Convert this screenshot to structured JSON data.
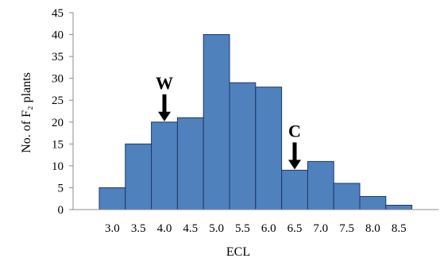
{
  "chart_data": {
    "type": "bar",
    "categories": [
      "3.0",
      "3.5",
      "4.0",
      "4.5",
      "5.0",
      "5.5",
      "6.0",
      "6.5",
      "7.0",
      "7.5",
      "8.0",
      "8.5"
    ],
    "values": [
      5,
      15,
      20,
      21,
      40,
      29,
      28,
      9,
      11,
      6,
      3,
      1
    ],
    "xlabel": "ECL",
    "ylabel": "No. of F₂ plants",
    "ylim": [
      0,
      45
    ],
    "yticks": [
      "0",
      "5",
      "10",
      "15",
      "20",
      "25",
      "30",
      "35",
      "40",
      "45"
    ],
    "grid": false,
    "legend": "none",
    "bar_color": "#4f81bd",
    "bar_edge_color": "#1f3864",
    "annotations": [
      {
        "text": "W",
        "category": "4.0",
        "value": 20
      },
      {
        "text": "C",
        "category": "6.5",
        "value": 9
      }
    ]
  }
}
